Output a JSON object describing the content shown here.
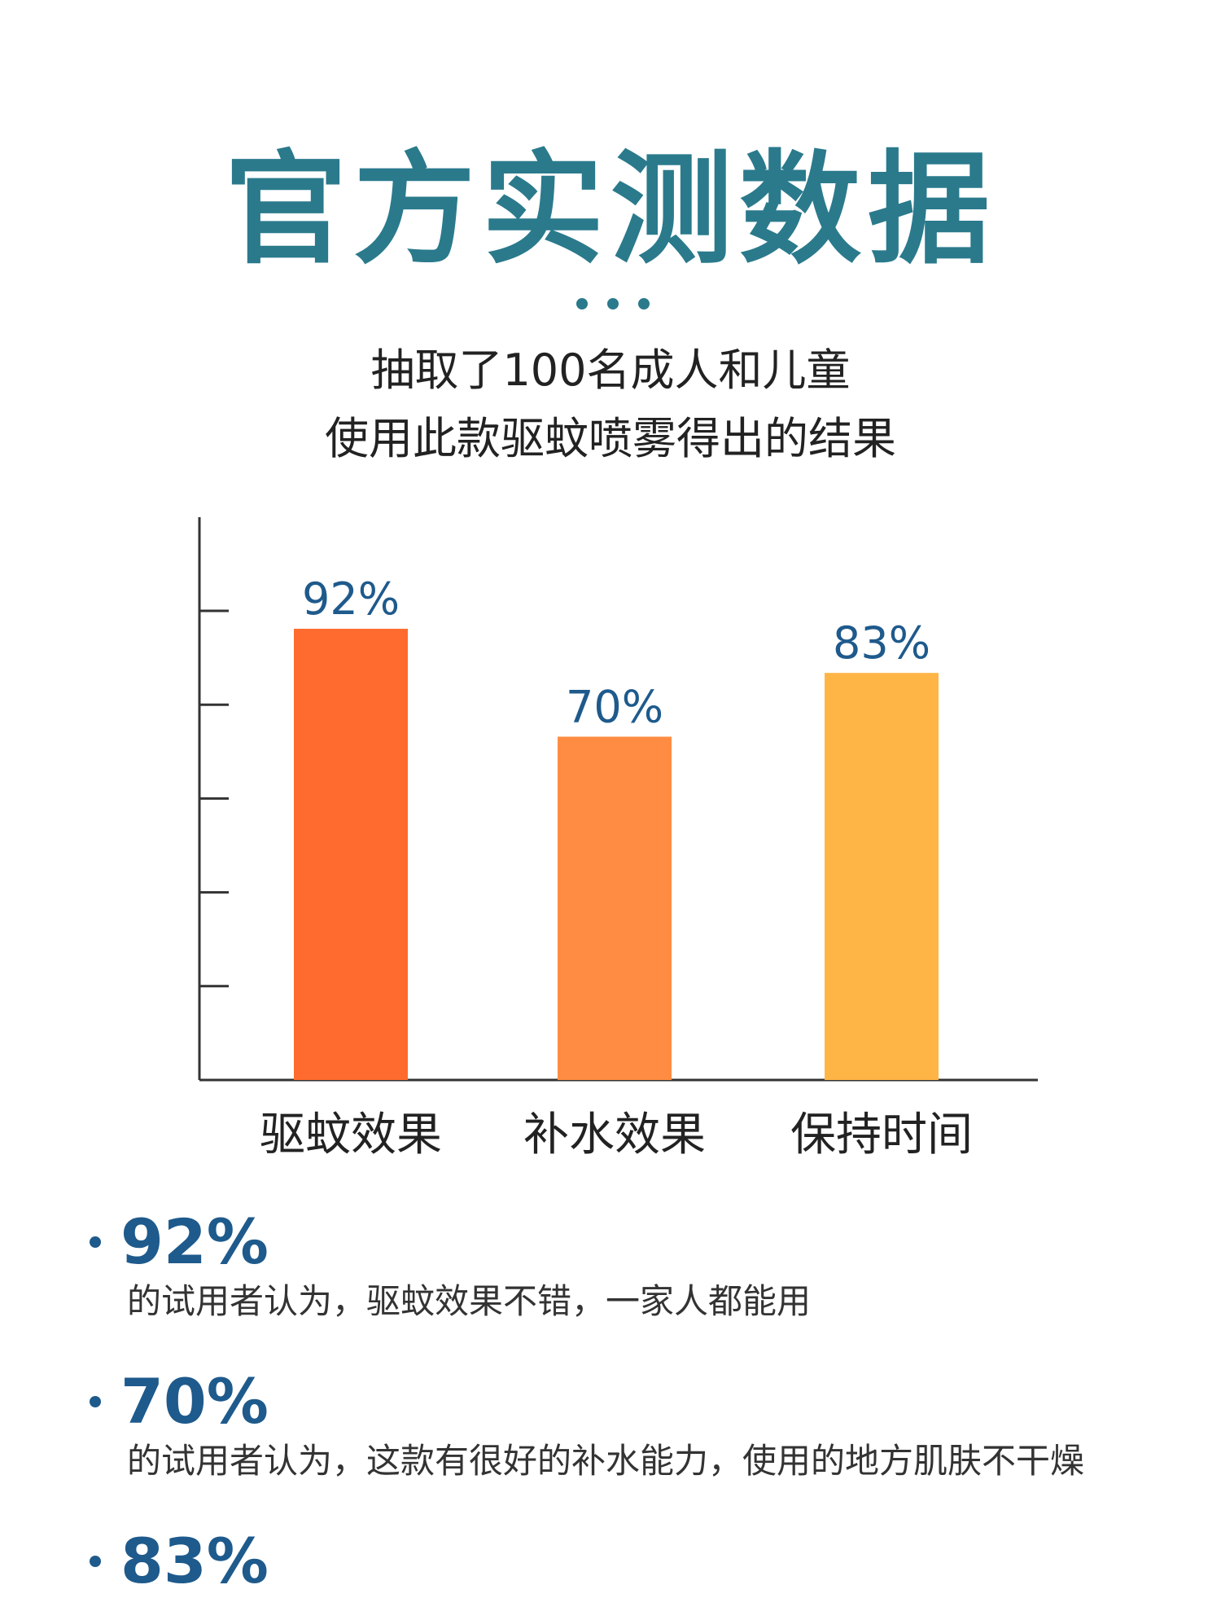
{
  "header": {
    "title": "官方实测数据",
    "subtitle_line1": "抽取了100名成人和儿童",
    "subtitle_line2": "使用此款驱蚊喷雾得出的结果"
  },
  "chart_data": {
    "type": "bar",
    "categories": [
      "驱蚊效果",
      "补水效果",
      "保持时间"
    ],
    "values": [
      92,
      70,
      83
    ],
    "value_labels": [
      "92%",
      "70%",
      "83%"
    ],
    "colors": [
      "#ff6b2e",
      "#ff8c42",
      "#ffb545"
    ],
    "ylim": [
      0,
      100
    ],
    "grid": false
  },
  "summary": [
    {
      "pct": "92%",
      "text": "的试用者认为，驱蚊效果不错，一家人都能用"
    },
    {
      "pct": "70%",
      "text": "的试用者认为，这款有很好的补水能力，使用的地方肌肤不干燥"
    },
    {
      "pct": "83%",
      "text": ""
    }
  ],
  "colors": {
    "title": "#2a7a8c",
    "value_label": "#1e5a8c",
    "axis": "#333333"
  }
}
